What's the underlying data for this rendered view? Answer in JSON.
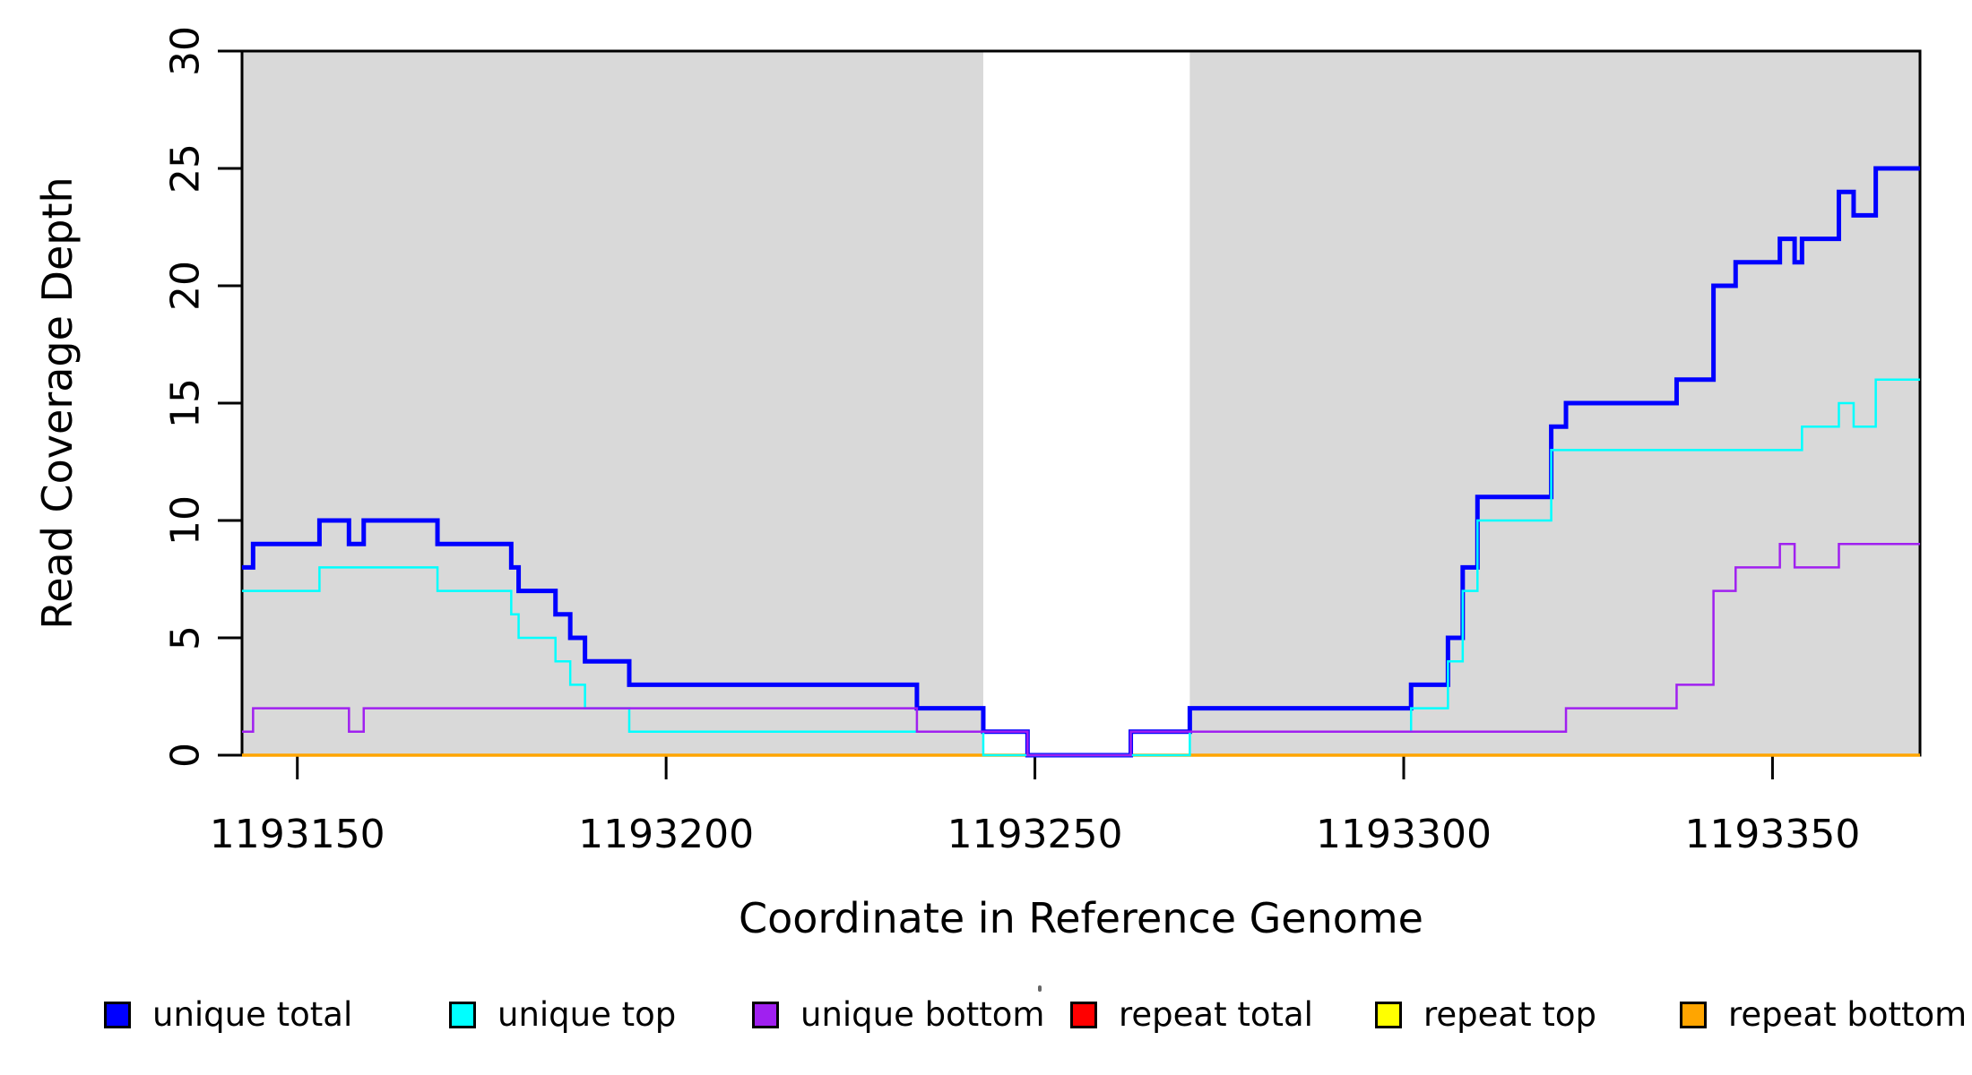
{
  "chart_data": {
    "type": "line",
    "subtype": "step-post",
    "title": "",
    "xlabel": "Coordinate in Reference Genome",
    "ylabel": "Read Coverage Depth",
    "xlim": [
      1193142.5,
      1193370
    ],
    "ylim": [
      0,
      30
    ],
    "grid": false,
    "x_ticks": [
      1193150,
      1193200,
      1193250,
      1193300,
      1193350
    ],
    "y_ticks": [
      0,
      5,
      10,
      15,
      20,
      25,
      30
    ],
    "plot_background_color": "#ffffff",
    "shaded_region_color": "#d9d9d9",
    "shaded_regions": [
      {
        "from": 1193142.5,
        "to": 1193243
      },
      {
        "from": 1193271,
        "to": 1193370
      }
    ],
    "series": [
      {
        "name": "repeat total",
        "color": "#ff0000",
        "width": 3,
        "points": [
          [
            1193142.5,
            0
          ]
        ]
      },
      {
        "name": "repeat top",
        "color": "#ffff00",
        "width": 3,
        "points": [
          [
            1193142.5,
            0
          ]
        ]
      },
      {
        "name": "repeat bottom",
        "color": "#ffa500",
        "width": 3.5,
        "points": [
          [
            1193142.5,
            0
          ]
        ]
      },
      {
        "name": "unique total",
        "color": "#0000ff",
        "width": 5,
        "points": [
          [
            1193142.5,
            8
          ],
          [
            1193144,
            9
          ],
          [
            1193153,
            10
          ],
          [
            1193157,
            9
          ],
          [
            1193159,
            10
          ],
          [
            1193169,
            9
          ],
          [
            1193179,
            8
          ],
          [
            1193180,
            7
          ],
          [
            1193185,
            6
          ],
          [
            1193187,
            5
          ],
          [
            1193189,
            4
          ],
          [
            1193195,
            3
          ],
          [
            1193234,
            2
          ],
          [
            1193243,
            1
          ],
          [
            1193249,
            0
          ],
          [
            1193263,
            1
          ],
          [
            1193271,
            2
          ],
          [
            1193301,
            3
          ],
          [
            1193306,
            5
          ],
          [
            1193308,
            8
          ],
          [
            1193310,
            11
          ],
          [
            1193320,
            14
          ],
          [
            1193322,
            15
          ],
          [
            1193337,
            16
          ],
          [
            1193342,
            20
          ],
          [
            1193345,
            21
          ],
          [
            1193351,
            22
          ],
          [
            1193353,
            21
          ],
          [
            1193354,
            22
          ],
          [
            1193359,
            24
          ],
          [
            1193361,
            23
          ],
          [
            1193364,
            25
          ]
        ]
      },
      {
        "name": "unique top",
        "color": "#00ffff",
        "width": 2.5,
        "points": [
          [
            1193142.5,
            7
          ],
          [
            1193153,
            8
          ],
          [
            1193169,
            7
          ],
          [
            1193179,
            6
          ],
          [
            1193180,
            5
          ],
          [
            1193185,
            4
          ],
          [
            1193187,
            3
          ],
          [
            1193189,
            2
          ],
          [
            1193195,
            1
          ],
          [
            1193243,
            0
          ],
          [
            1193271,
            1
          ],
          [
            1193301,
            2
          ],
          [
            1193306,
            4
          ],
          [
            1193308,
            7
          ],
          [
            1193310,
            10
          ],
          [
            1193320,
            13
          ],
          [
            1193354,
            14
          ],
          [
            1193359,
            15
          ],
          [
            1193361,
            14
          ],
          [
            1193364,
            16
          ]
        ]
      },
      {
        "name": "unique bottom",
        "color": "#a020f0",
        "width": 2.5,
        "points": [
          [
            1193142.5,
            1
          ],
          [
            1193144,
            2
          ],
          [
            1193157,
            1
          ],
          [
            1193159,
            2
          ],
          [
            1193234,
            1
          ],
          [
            1193249,
            0
          ],
          [
            1193263,
            1
          ],
          [
            1193322,
            2
          ],
          [
            1193337,
            3
          ],
          [
            1193342,
            7
          ],
          [
            1193345,
            8
          ],
          [
            1193351,
            9
          ],
          [
            1193353,
            8
          ],
          [
            1193359,
            9
          ]
        ]
      }
    ],
    "legend": {
      "position": "bottom",
      "entries": [
        {
          "label": "unique total",
          "color": "#0000ff"
        },
        {
          "label": "unique top",
          "color": "#00ffff"
        },
        {
          "label": "unique bottom",
          "color": "#a020f0"
        },
        {
          "label": "repeat total",
          "color": "#ff0000"
        },
        {
          "label": "repeat top",
          "color": "#ffff00"
        },
        {
          "label": "repeat bottom",
          "color": "#ffa500"
        }
      ]
    }
  }
}
